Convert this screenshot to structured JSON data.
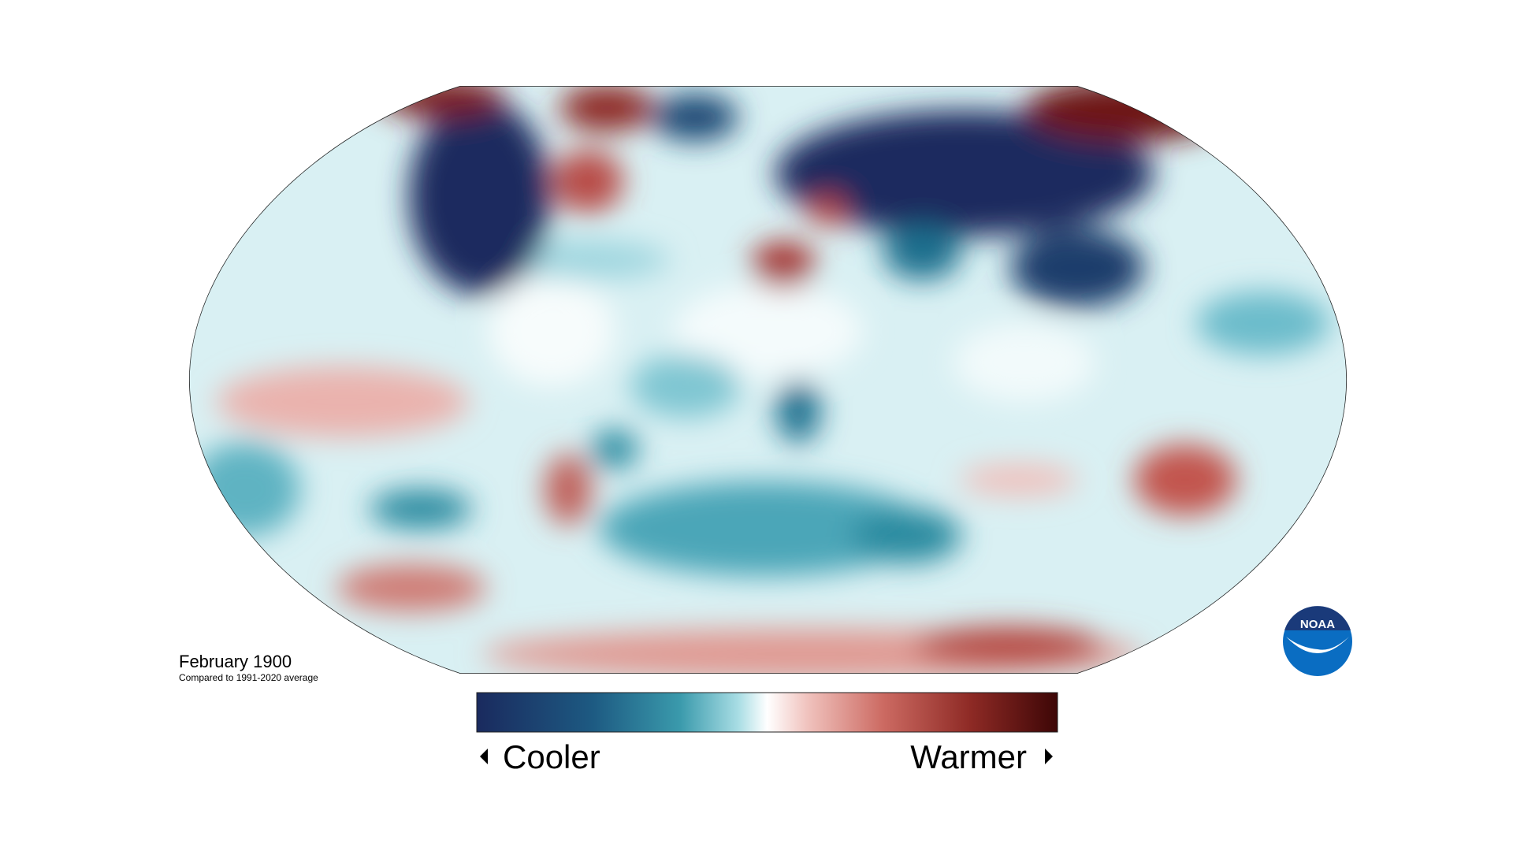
{
  "map": {
    "title": "February 1900",
    "subtitle": "Compared to 1991-2020 average"
  },
  "legend": {
    "low_label": "Cooler",
    "high_label": "Warmer"
  },
  "logo": {
    "text": "NOAA"
  }
}
